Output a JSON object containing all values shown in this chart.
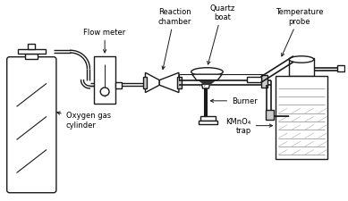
{
  "background_color": "#ffffff",
  "line_color": "#1a1a1a",
  "lw": 1.0,
  "labels": {
    "flow_meter": "Flow meter",
    "reaction_chamber": "Reaction\nchamber",
    "quartz_boat": "Quartz\nboat",
    "temperature_probe": "Temperature\nprobe",
    "burner": "Burner",
    "kmno4_trap": "KMnO₄\ntrap",
    "oxygen_gas_cylinder": "Oxygen gas\ncylinder"
  },
  "fontsize": 6.0
}
